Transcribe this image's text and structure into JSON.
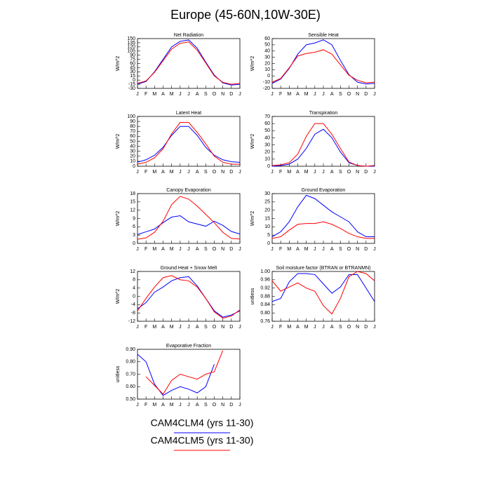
{
  "title": "Europe (45-60N,10W-30E)",
  "chart_data": [
    {
      "type": "line",
      "title": "Net Radiation",
      "ylabel": "W/m^2",
      "categories": [
        "J",
        "F",
        "M",
        "A",
        "M",
        "J",
        "J",
        "A",
        "S",
        "O",
        "N",
        "D",
        "J"
      ],
      "ylim": [
        -30,
        150
      ],
      "yticks": [
        -30,
        -15,
        0,
        15,
        30,
        45,
        60,
        75,
        90,
        105,
        120,
        135,
        150
      ],
      "series": [
        {
          "name": "CAM4CLM4 (yrs 11-30)",
          "color": "#0000ff",
          "values": [
            -15,
            -5,
            30,
            75,
            120,
            140,
            145,
            115,
            65,
            18,
            -10,
            -18,
            -15
          ]
        },
        {
          "name": "CAM4CLM5 (yrs 11-30)",
          "color": "#ff0000",
          "values": [
            -12,
            -3,
            28,
            70,
            112,
            133,
            138,
            108,
            62,
            15,
            -8,
            -15,
            -12
          ]
        }
      ]
    },
    {
      "type": "line",
      "title": "Sensible Heat",
      "ylabel": "W/m^2",
      "categories": [
        "J",
        "F",
        "M",
        "A",
        "M",
        "J",
        "J",
        "A",
        "S",
        "O",
        "N",
        "D",
        "J"
      ],
      "ylim": [
        -20,
        60
      ],
      "yticks": [
        -20,
        -10,
        0,
        10,
        20,
        30,
        40,
        50,
        60
      ],
      "series": [
        {
          "name": "CAM4CLM4 (yrs 11-30)",
          "color": "#0000ff",
          "values": [
            -12,
            -5,
            12,
            35,
            50,
            53,
            58,
            50,
            25,
            2,
            -10,
            -13,
            -12
          ]
        },
        {
          "name": "CAM4CLM5 (yrs 11-30)",
          "color": "#ff0000",
          "values": [
            -10,
            -4,
            13,
            32,
            36,
            38,
            42,
            35,
            18,
            1,
            -7,
            -11,
            -10
          ]
        }
      ]
    },
    {
      "type": "line",
      "title": "Latent Heat",
      "ylabel": "W/m^2",
      "categories": [
        "J",
        "F",
        "M",
        "A",
        "M",
        "J",
        "J",
        "A",
        "S",
        "O",
        "N",
        "D",
        "J"
      ],
      "ylim": [
        0,
        100
      ],
      "yticks": [
        0,
        10,
        20,
        30,
        40,
        50,
        60,
        70,
        80,
        90,
        100
      ],
      "series": [
        {
          "name": "CAM4CLM4 (yrs 11-30)",
          "color": "#0000ff",
          "values": [
            8,
            13,
            22,
            38,
            62,
            80,
            80,
            62,
            38,
            22,
            13,
            9,
            8
          ]
        },
        {
          "name": "CAM4CLM5 (yrs 11-30)",
          "color": "#ff0000",
          "values": [
            4,
            8,
            17,
            35,
            65,
            88,
            88,
            68,
            45,
            20,
            8,
            4,
            4
          ]
        }
      ]
    },
    {
      "type": "line",
      "title": "Transpiration",
      "ylabel": "W/m^2",
      "categories": [
        "J",
        "F",
        "M",
        "A",
        "M",
        "J",
        "J",
        "A",
        "S",
        "O",
        "N",
        "D",
        "J"
      ],
      "ylim": [
        0,
        70
      ],
      "yticks": [
        0,
        10,
        20,
        30,
        40,
        50,
        60,
        70
      ],
      "series": [
        {
          "name": "CAM4CLM4 (yrs 11-30)",
          "color": "#0000ff",
          "values": [
            0,
            1,
            3,
            10,
            25,
            45,
            52,
            40,
            20,
            5,
            1,
            0,
            0
          ]
        },
        {
          "name": "CAM4CLM5 (yrs 11-30)",
          "color": "#ff0000",
          "values": [
            1,
            2,
            5,
            17,
            42,
            60,
            60,
            45,
            25,
            6,
            1,
            0,
            1
          ]
        }
      ]
    },
    {
      "type": "line",
      "title": "Canopy Evaporation",
      "ylabel": "W/m^2",
      "categories": [
        "J",
        "F",
        "M",
        "A",
        "M",
        "J",
        "J",
        "A",
        "S",
        "O",
        "N",
        "D",
        "J"
      ],
      "ylim": [
        0,
        18
      ],
      "yticks": [
        0,
        3,
        6,
        9,
        12,
        15,
        18
      ],
      "series": [
        {
          "name": "CAM4CLM4 (yrs 11-30)",
          "color": "#0000ff",
          "values": [
            3.2,
            4.2,
            5.2,
            7.5,
            9.5,
            10,
            7.8,
            7,
            6.2,
            8,
            6.5,
            4.3,
            3.4
          ]
        },
        {
          "name": "CAM4CLM5 (yrs 11-30)",
          "color": "#ff0000",
          "values": [
            1.5,
            2,
            4,
            8,
            14,
            17,
            16,
            13.5,
            10.5,
            7.5,
            4,
            1.8,
            1.6
          ]
        }
      ]
    },
    {
      "type": "line",
      "title": "Ground Evaporation",
      "ylabel": "W/m^2",
      "categories": [
        "J",
        "F",
        "M",
        "A",
        "M",
        "J",
        "J",
        "A",
        "S",
        "O",
        "N",
        "D",
        "J"
      ],
      "ylim": [
        0,
        30
      ],
      "yticks": [
        0,
        5,
        10,
        15,
        20,
        25,
        30
      ],
      "series": [
        {
          "name": "CAM4CLM4 (yrs 11-30)",
          "color": "#0000ff",
          "values": [
            4,
            7,
            13,
            22,
            29,
            27,
            23,
            19,
            16,
            13,
            7,
            4,
            4
          ]
        },
        {
          "name": "CAM4CLM5 (yrs 11-30)",
          "color": "#ff0000",
          "values": [
            3,
            4,
            8,
            11.5,
            12,
            12,
            13,
            11.5,
            9,
            6,
            4,
            3,
            3
          ]
        }
      ]
    },
    {
      "type": "line",
      "title": "Ground Heat + Snow Melt",
      "ylabel": "W/m^2",
      "categories": [
        "J",
        "F",
        "M",
        "A",
        "M",
        "J",
        "J",
        "A",
        "S",
        "O",
        "N",
        "D",
        "J"
      ],
      "ylim": [
        -12,
        12
      ],
      "yticks": [
        -12,
        -8,
        -4,
        0,
        4,
        8,
        12
      ],
      "series": [
        {
          "name": "CAM4CLM4 (yrs 11-30)",
          "color": "#0000ff",
          "values": [
            -6,
            -3,
            2,
            4.5,
            7.5,
            9,
            9.5,
            5,
            -1,
            -7,
            -10,
            -9,
            -7
          ]
        },
        {
          "name": "CAM4CLM5 (yrs 11-30)",
          "color": "#ff0000",
          "values": [
            -7,
            -1,
            4.5,
            9,
            10,
            8,
            7.5,
            4.5,
            -1,
            -7.5,
            -10.5,
            -9.5,
            -6.5
          ]
        }
      ]
    },
    {
      "type": "line",
      "title": "Soil moisture factor (BTRAN or BTRANMN)",
      "ylabel": "unitless",
      "categories": [
        "J",
        "F",
        "M",
        "A",
        "M",
        "J",
        "J",
        "A",
        "S",
        "O",
        "N",
        "D",
        "J"
      ],
      "ylim": [
        0.76,
        1.0
      ],
      "yticks": [
        0.76,
        {
          "value": 0.8,
          "label": "0.80"
        },
        0.84,
        0.88,
        0.92,
        0.96,
        {
          "value": 1.0,
          "label": "1.00"
        }
      ],
      "series": [
        {
          "name": "CAM4CLM4 (yrs 11-30)",
          "color": "#0000ff",
          "values": [
            0.855,
            0.87,
            0.95,
            0.99,
            0.99,
            0.985,
            0.94,
            0.895,
            0.925,
            0.985,
            0.985,
            0.92,
            0.855
          ]
        },
        {
          "name": "CAM4CLM5 (yrs 11-30)",
          "color": "#ff0000",
          "values": [
            0.955,
            0.905,
            0.925,
            0.945,
            0.92,
            0.905,
            0.835,
            0.795,
            0.87,
            0.975,
            1.0,
            0.99,
            0.955
          ]
        }
      ]
    },
    {
      "type": "line",
      "title": "Evaporative Fraction",
      "ylabel": "unitless",
      "categories": [
        "J",
        "F",
        "M",
        "A",
        "M",
        "J",
        "J",
        "A",
        "S",
        "O",
        "N",
        "D",
        "J"
      ],
      "ylim": [
        0.5,
        0.9
      ],
      "yticks": [
        {
          "value": 0.5,
          "label": "0.50"
        },
        {
          "value": 0.6,
          "label": "0.60"
        },
        {
          "value": 0.7,
          "label": "0.70"
        },
        {
          "value": 0.8,
          "label": "0.80"
        },
        {
          "value": 0.9,
          "label": "0.90"
        }
      ],
      "series": [
        {
          "name": "CAM4CLM4 (yrs 11-30)",
          "color": "#0000ff",
          "values": [
            0.86,
            0.8,
            0.62,
            0.53,
            0.57,
            0.6,
            0.58,
            0.55,
            0.6,
            0.78,
            null,
            null,
            null
          ]
        },
        {
          "name": "CAM4CLM5 (yrs 11-30)",
          "color": "#ff0000",
          "values": [
            null,
            0.68,
            0.61,
            0.54,
            0.65,
            0.7,
            0.68,
            0.66,
            0.7,
            0.72,
            0.89,
            null,
            null
          ]
        }
      ]
    }
  ]
}
